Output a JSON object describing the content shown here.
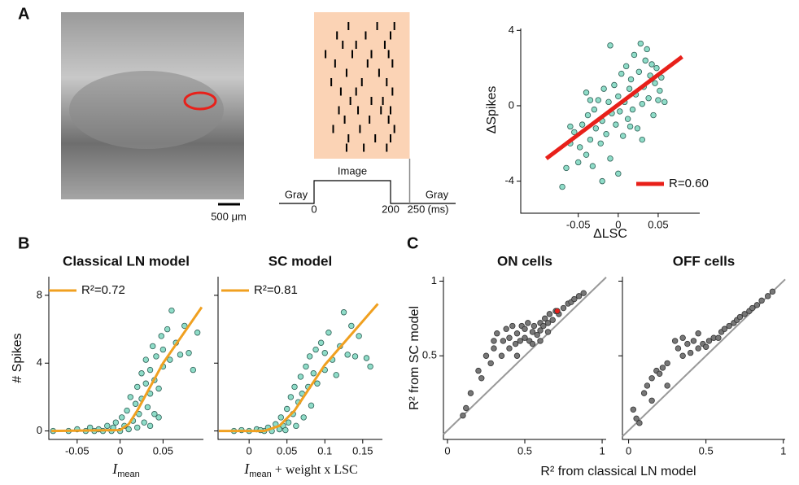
{
  "figure": {
    "panel_labels": [
      "A",
      "B",
      "C"
    ],
    "scale_bar": "500 μm",
    "shared_xlabel": "R² from classical LN model"
  },
  "chart_data": [
    {
      "type": "raster",
      "xlim": [
        0,
        250
      ],
      "xticks": [
        0,
        200,
        250
      ],
      "xunit": "(ms)",
      "stimulus": {
        "label": "Image",
        "start": 0,
        "end": 200
      },
      "baseline_labels": [
        "Gray",
        "Gray"
      ],
      "trials": [
        [
          90,
          165,
          210
        ],
        [
          60,
          135,
          200
        ],
        [
          75,
          110,
          185
        ],
        [
          30,
          100,
          150,
          195
        ],
        [
          55,
          140,
          205
        ],
        [
          85,
          170
        ],
        [
          45,
          125,
          190
        ],
        [
          70,
          110,
          205
        ],
        [
          95,
          150,
          180
        ],
        [
          65,
          115,
          175,
          200
        ],
        [
          80,
          145,
          195
        ],
        [
          50,
          120,
          210
        ],
        [
          90,
          160,
          200
        ],
        [
          85,
          130,
          190
        ]
      ]
    },
    {
      "type": "scatter",
      "xlabel": "ΔLSC",
      "ylabel": "ΔSpikes",
      "xlim": [
        -0.122,
        0.102
      ],
      "ylim": [
        -5.7,
        4.1
      ],
      "xticks": [
        -0.05,
        0,
        0.05
      ],
      "yticks": [
        -4,
        0,
        4
      ],
      "series": [
        {
          "mode": "markers",
          "color": "#8fdcc8",
          "x": [
            -0.07,
            -0.065,
            -0.06,
            -0.055,
            -0.05,
            -0.048,
            -0.045,
            -0.04,
            -0.04,
            -0.038,
            -0.035,
            -0.032,
            -0.03,
            -0.028,
            -0.025,
            -0.022,
            -0.02,
            -0.018,
            -0.015,
            -0.012,
            -0.01,
            -0.01,
            -0.008,
            -0.005,
            -0.003,
            0,
            0.002,
            0.004,
            0.006,
            0.008,
            0.01,
            0.012,
            0.014,
            0.016,
            0.018,
            0.02,
            0.022,
            0.024,
            0.026,
            0.028,
            0.03,
            0.032,
            0.034,
            0.036,
            0.038,
            0.04,
            0.042,
            0.044,
            0.046,
            0.048,
            0.05,
            0.052,
            0.054,
            0.058,
            -0.02,
            0,
            -0.06,
            0.03,
            0.015,
            -0.035
          ],
          "values": [
            -4.3,
            -3.3,
            -2.0,
            -1.4,
            -3.0,
            -2.2,
            -1.0,
            -2.6,
            0.7,
            -0.5,
            -1.8,
            -3.2,
            -0.2,
            -1.2,
            0.3,
            -2.0,
            -0.8,
            0.9,
            -1.5,
            0.2,
            3.2,
            -2.8,
            -0.4,
            1.1,
            -1.0,
            0.5,
            -0.3,
            1.7,
            -1.6,
            0.2,
            2.1,
            -0.7,
            0.9,
            1.4,
            -0.2,
            2.7,
            0.6,
            -1.2,
            1.8,
            3.3,
            0.1,
            1.0,
            2.4,
            3.0,
            0.4,
            1.6,
            2.2,
            -0.5,
            1.2,
            2.0,
            0.3,
            0.8,
            1.5,
            0.2,
            -4.0,
            -3.6,
            -1.1,
            -1.8,
            -1.1,
            0.3
          ]
        },
        {
          "mode": "line",
          "name": "R=0.60",
          "color": "#e8201a",
          "x": [
            -0.09,
            0.08
          ],
          "values": [
            -2.8,
            2.6
          ]
        }
      ]
    },
    {
      "type": "scatter",
      "title": "Classical LN model",
      "xlabel": {
        "main": "I",
        "sub": "mean",
        "rest": ""
      },
      "ylabel": "# Spikes",
      "xlim": [
        -0.083,
        0.097
      ],
      "ylim": [
        -0.5,
        9.1
      ],
      "xticks": [
        -0.05,
        0,
        0.05
      ],
      "yticks": [
        0,
        4,
        8
      ],
      "series": [
        {
          "mode": "markers",
          "color": "#8fdcc8",
          "x": [
            -0.078,
            -0.06,
            -0.05,
            -0.04,
            -0.035,
            -0.03,
            -0.025,
            -0.02,
            -0.015,
            -0.01,
            -0.008,
            -0.005,
            0,
            0.002,
            0.005,
            0.008,
            0.01,
            0.012,
            0.015,
            0.018,
            0.02,
            0.02,
            0.022,
            0.025,
            0.025,
            0.028,
            0.03,
            0.03,
            0.032,
            0.035,
            0.035,
            0.038,
            0.04,
            0.04,
            0.042,
            0.045,
            0.048,
            0.05,
            0.05,
            0.055,
            0.058,
            0.06,
            0.065,
            0.07,
            0.075,
            0.08,
            0.085,
            0.09,
            0.035,
            0.045
          ],
          "values": [
            0,
            0,
            0.1,
            0,
            0.2,
            0,
            0.1,
            0,
            0.3,
            0,
            0.2,
            0.5,
            0,
            0.8,
            0.3,
            1.2,
            0.1,
            2.0,
            0.6,
            1.6,
            2.6,
            0.2,
            1.0,
            3.4,
            1.9,
            0.5,
            2.8,
            4.2,
            1.4,
            3.6,
            2.2,
            5.0,
            3.0,
            1.0,
            4.4,
            2.5,
            5.6,
            3.8,
            4.8,
            6.0,
            4.2,
            7.1,
            5.2,
            4.5,
            6.2,
            4.6,
            3.6,
            5.8,
            0.3,
            0.8
          ]
        },
        {
          "mode": "line",
          "name": "R²=0.72",
          "color": "#f0a020",
          "x": [
            -0.08,
            0,
            0.01,
            0.02,
            0.05,
            0.095
          ],
          "values": [
            0,
            0.05,
            0.4,
            1.2,
            4.0,
            7.3
          ]
        }
      ]
    },
    {
      "type": "scatter",
      "title": "SC model",
      "xlabel": {
        "main": "I",
        "sub": "mean",
        "rest": " + weight x LSC"
      },
      "xlim": [
        -0.041,
        0.176
      ],
      "ylim": [
        -0.5,
        9.1
      ],
      "xticks": [
        0,
        0.05,
        0.1,
        0.15
      ],
      "yticks": [
        0,
        4,
        8
      ],
      "show_ytick_labels": false,
      "series": [
        {
          "mode": "markers",
          "color": "#8fdcc8",
          "x": [
            -0.02,
            0,
            0.01,
            0.02,
            0.025,
            0.03,
            0.035,
            0.04,
            0.042,
            0.045,
            0.05,
            0.052,
            0.055,
            0.058,
            0.06,
            0.062,
            0.065,
            0.068,
            0.07,
            0.072,
            0.075,
            0.078,
            0.08,
            0.082,
            0.085,
            0.088,
            0.09,
            0.095,
            0.1,
            0.1,
            0.105,
            0.11,
            0.115,
            0.12,
            0.125,
            0.13,
            0.135,
            0.14,
            0.145,
            0.155,
            0.16,
            -0.01,
            0.015,
            0.048
          ],
          "values": [
            0,
            0,
            0.1,
            0,
            0.2,
            0,
            0.4,
            0.1,
            0.8,
            0.3,
            1.3,
            0.5,
            2.0,
            1.0,
            2.6,
            0.3,
            1.7,
            3.2,
            2.2,
            0.8,
            3.8,
            2.6,
            4.4,
            1.5,
            3.4,
            4.8,
            2.8,
            5.2,
            3.6,
            4.6,
            5.8,
            4.2,
            3.3,
            5.0,
            7.0,
            4.5,
            6.2,
            4.4,
            5.6,
            4.3,
            3.8,
            0.05,
            0.05,
            0.05
          ]
        },
        {
          "mode": "line",
          "name": "R²=0.81",
          "color": "#f0a020",
          "x": [
            -0.04,
            0.02,
            0.04,
            0.06,
            0.1,
            0.17
          ],
          "values": [
            0,
            0,
            0.3,
            1.2,
            3.9,
            7.5
          ]
        }
      ]
    },
    {
      "type": "scatter",
      "title": "ON cells",
      "ylabel": "R² from SC model",
      "diagonal": true,
      "xlim": [
        -0.026,
        1.026
      ],
      "ylim": [
        -0.06,
        1.03
      ],
      "xticks": [
        0,
        0.5,
        1
      ],
      "yticks": [
        0.5,
        1
      ],
      "series": [
        {
          "mode": "markers",
          "color": "#777777",
          "x": [
            0.1,
            0.12,
            0.15,
            0.2,
            0.22,
            0.25,
            0.28,
            0.3,
            0.3,
            0.32,
            0.35,
            0.36,
            0.38,
            0.4,
            0.4,
            0.42,
            0.44,
            0.45,
            0.47,
            0.48,
            0.5,
            0.5,
            0.52,
            0.53,
            0.55,
            0.56,
            0.58,
            0.6,
            0.6,
            0.62,
            0.63,
            0.65,
            0.66,
            0.68,
            0.7,
            0.72,
            0.75,
            0.78,
            0.8,
            0.82,
            0.85,
            0.88,
            0.6,
            0.55,
            0.45,
            0.65
          ],
          "values": [
            0.1,
            0.15,
            0.25,
            0.4,
            0.35,
            0.5,
            0.45,
            0.6,
            0.55,
            0.65,
            0.5,
            0.6,
            0.68,
            0.55,
            0.62,
            0.7,
            0.58,
            0.65,
            0.6,
            0.7,
            0.62,
            0.68,
            0.72,
            0.6,
            0.66,
            0.7,
            0.64,
            0.72,
            0.67,
            0.7,
            0.75,
            0.72,
            0.78,
            0.74,
            0.8,
            0.78,
            0.82,
            0.85,
            0.86,
            0.88,
            0.9,
            0.92,
            0.6,
            0.58,
            0.5,
            0.66
          ]
        },
        {
          "mode": "markers",
          "color": "#e8201a",
          "x": [
            0.71
          ],
          "values": [
            0.8
          ]
        }
      ]
    },
    {
      "type": "scatter",
      "title": "OFF cells",
      "diagonal": true,
      "show_ytick_labels": false,
      "xlim": [
        -0.04,
        1.012
      ],
      "ylim": [
        -0.06,
        1.03
      ],
      "xticks": [
        0,
        0.5,
        1
      ],
      "yticks": [
        0.5,
        1
      ],
      "series": [
        {
          "mode": "markers",
          "color": "#777777",
          "x": [
            0.03,
            0.05,
            0.07,
            0.1,
            0.12,
            0.15,
            0.18,
            0.2,
            0.22,
            0.25,
            0.3,
            0.32,
            0.35,
            0.38,
            0.4,
            0.42,
            0.45,
            0.48,
            0.5,
            0.52,
            0.55,
            0.58,
            0.6,
            0.62,
            0.65,
            0.68,
            0.7,
            0.72,
            0.75,
            0.78,
            0.8,
            0.83,
            0.86,
            0.9,
            0.93,
            0.25,
            0.15,
            0.35,
            0.45
          ],
          "values": [
            0.14,
            0.08,
            0.05,
            0.25,
            0.3,
            0.35,
            0.4,
            0.38,
            0.42,
            0.45,
            0.6,
            0.55,
            0.5,
            0.58,
            0.52,
            0.6,
            0.55,
            0.58,
            0.56,
            0.6,
            0.62,
            0.62,
            0.66,
            0.68,
            0.7,
            0.72,
            0.74,
            0.76,
            0.78,
            0.8,
            0.82,
            0.84,
            0.87,
            0.9,
            0.93,
            0.3,
            0.2,
            0.62,
            0.65
          ]
        }
      ]
    }
  ]
}
